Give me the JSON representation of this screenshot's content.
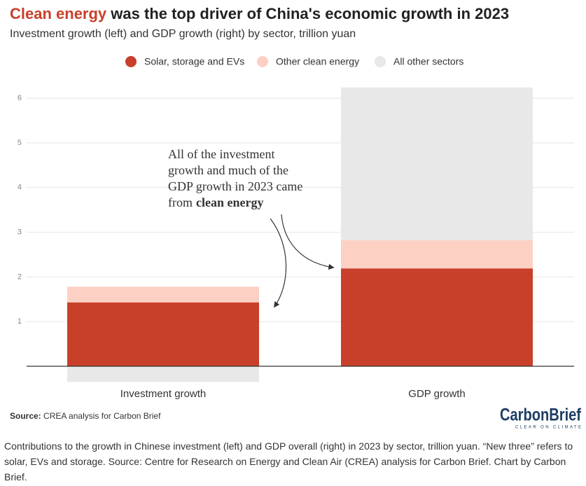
{
  "chart_data": {
    "type": "stacked-bar",
    "title_highlight": "Clean energy",
    "title": "was the top driver of China's economic growth in 2023",
    "subtitle": "Investment growth (left) and GDP growth (right) by sector, trillion yuan",
    "categories": [
      "Investment growth",
      "GDP growth"
    ],
    "series": [
      {
        "name": "Solar, storage and EVs",
        "color": "#c8402a",
        "values": [
          1.43,
          2.19
        ]
      },
      {
        "name": "Other clean energy",
        "color": "#fdd0c4",
        "values": [
          0.35,
          0.63
        ]
      },
      {
        "name": "All other sectors",
        "color": "#e8e8e8",
        "values": [
          -0.35,
          3.42
        ]
      }
    ],
    "ylim": [
      -0.4,
      6.4
    ],
    "yticks": [
      1,
      2,
      3,
      4,
      5,
      6
    ],
    "grid": true,
    "annotation": {
      "lines": [
        "All of the investment",
        "growth and much of the",
        "GDP growth in 2023 came",
        "from"
      ],
      "bold": "clean energy"
    },
    "source_label": "Source:",
    "source": "CREA analysis for Carbon Brief"
  },
  "logo": {
    "name": "CarbonBrief",
    "tagline": "CLEAR ON CLIMATE"
  },
  "caption": "Contributions to the growth in Chinese investment (left) and GDP overall (right) in 2023 by sector, trillion yuan. “New three” refers to solar, EVs and storage. Source: Centre for Research on Energy and Clean Air (CREA) analysis for Carbon Brief. Chart by Carbon Brief."
}
